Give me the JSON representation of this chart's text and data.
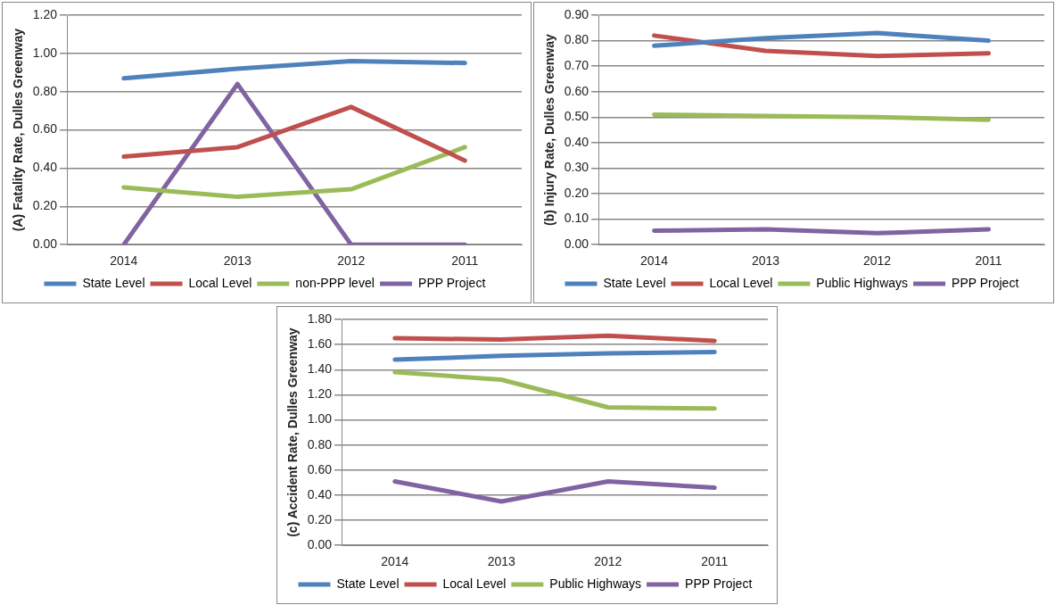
{
  "chart_data": [
    {
      "type": "line",
      "ylabel": "(A) Fatality Rate, Dulles Greenway",
      "categories": [
        "2014",
        "2013",
        "2012",
        "2011"
      ],
      "ylim": [
        0,
        1.2
      ],
      "yticks": [
        {
          "value": 0,
          "label": "0.00"
        },
        {
          "value": 0.2,
          "label": "0.20"
        },
        {
          "value": 0.4,
          "label": "0.40"
        },
        {
          "value": 0.6,
          "label": "0.60"
        },
        {
          "value": 0.8,
          "label": "0.80"
        },
        {
          "value": 1.0,
          "label": "1.00"
        },
        {
          "value": 1.2,
          "label": "1.20"
        }
      ],
      "grid": "y",
      "legend": "bottom",
      "marker": "none",
      "line_style": "solid",
      "series": [
        {
          "name": "State Level",
          "color": "#4f81bd",
          "values": [
            0.87,
            0.92,
            0.96,
            0.95
          ]
        },
        {
          "name": "Local Level",
          "color": "#c0504d",
          "values": [
            0.46,
            0.51,
            0.72,
            0.44
          ]
        },
        {
          "name": "non-PPP level",
          "color": "#9bbb59",
          "values": [
            0.3,
            0.25,
            0.29,
            0.51
          ]
        },
        {
          "name": "PPP Project",
          "color": "#8064a2",
          "values": [
            0,
            0.84,
            0,
            0
          ]
        }
      ]
    },
    {
      "type": "line",
      "ylabel": "(b) Injury Rate, Dulles Greenway",
      "categories": [
        "2014",
        "2013",
        "2012",
        "2011"
      ],
      "ylim": [
        0,
        0.9
      ],
      "yticks": [
        {
          "value": 0,
          "label": "0.00"
        },
        {
          "value": 0.1,
          "label": "0.10"
        },
        {
          "value": 0.2,
          "label": "0.20"
        },
        {
          "value": 0.3,
          "label": "0.30"
        },
        {
          "value": 0.4,
          "label": "0.40"
        },
        {
          "value": 0.5,
          "label": "0.50"
        },
        {
          "value": 0.6,
          "label": "0.60"
        },
        {
          "value": 0.7,
          "label": "0.70"
        },
        {
          "value": 0.8,
          "label": "0.80"
        },
        {
          "value": 0.9,
          "label": "0.90"
        }
      ],
      "grid": "y",
      "legend": "bottom",
      "marker": "none",
      "line_style": "solid",
      "series": [
        {
          "name": "State Level",
          "color": "#4f81bd",
          "values": [
            0.78,
            0.81,
            0.83,
            0.8
          ]
        },
        {
          "name": "Local Level",
          "color": "#c0504d",
          "values": [
            0.82,
            0.76,
            0.74,
            0.75
          ]
        },
        {
          "name": "Public Highways",
          "color": "#9bbb59",
          "values": [
            0.51,
            0.505,
            0.5,
            0.49
          ]
        },
        {
          "name": "PPP Project",
          "color": "#8064a2",
          "values": [
            0.055,
            0.06,
            0.045,
            0.06
          ]
        }
      ]
    },
    {
      "type": "line",
      "ylabel": "(c) Accident Rate, Dulles Greenway",
      "categories": [
        "2014",
        "2013",
        "2012",
        "2011"
      ],
      "ylim": [
        0,
        1.8
      ],
      "yticks": [
        {
          "value": 0,
          "label": "0.00"
        },
        {
          "value": 0.2,
          "label": "0.20"
        },
        {
          "value": 0.4,
          "label": "0.40"
        },
        {
          "value": 0.6,
          "label": "0.60"
        },
        {
          "value": 0.8,
          "label": "0.80"
        },
        {
          "value": 1.0,
          "label": "1.00"
        },
        {
          "value": 1.2,
          "label": "1.20"
        },
        {
          "value": 1.4,
          "label": "1.40"
        },
        {
          "value": 1.6,
          "label": "1.60"
        },
        {
          "value": 1.8,
          "label": "1.80"
        }
      ],
      "grid": "y",
      "legend": "bottom",
      "marker": "none",
      "line_style": "solid",
      "series": [
        {
          "name": "State Level",
          "color": "#4f81bd",
          "values": [
            1.48,
            1.51,
            1.53,
            1.54
          ]
        },
        {
          "name": "Local Level",
          "color": "#c0504d",
          "values": [
            1.65,
            1.64,
            1.67,
            1.63
          ]
        },
        {
          "name": "Public Highways",
          "color": "#9bbb59",
          "values": [
            1.38,
            1.32,
            1.1,
            1.09
          ]
        },
        {
          "name": "PPP Project",
          "color": "#8064a2",
          "values": [
            0.51,
            0.35,
            0.51,
            0.46
          ]
        }
      ]
    }
  ]
}
